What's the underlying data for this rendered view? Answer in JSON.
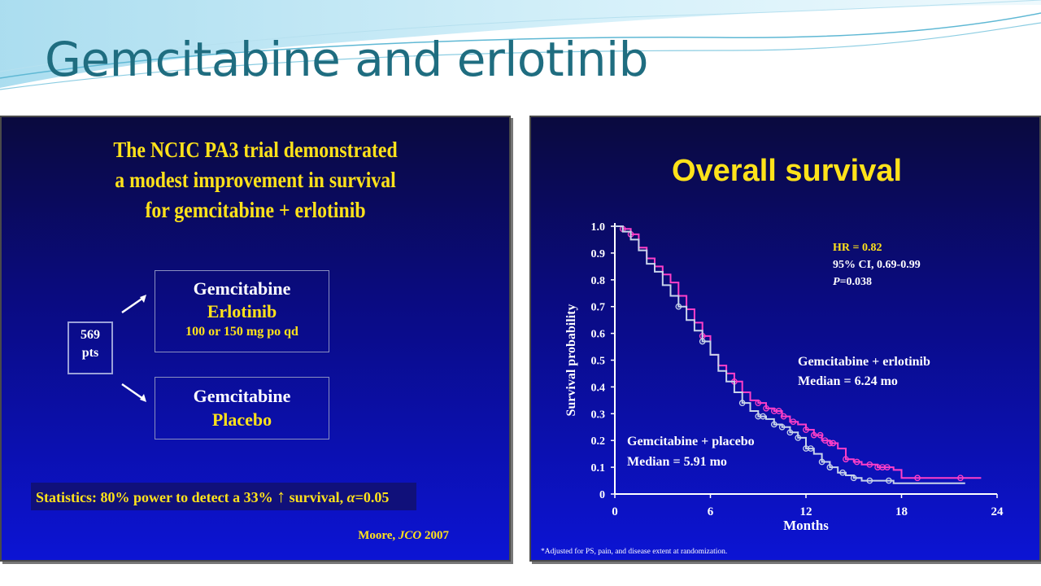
{
  "slide": {
    "title": "Gemcitabine and erlotinib"
  },
  "left_panel": {
    "title_lines": [
      "The NCIC PA3 trial demonstrated",
      "a modest improvement in survival",
      "for gemcitabine + erlotinib"
    ],
    "patients": {
      "count": "569",
      "unit": "pts"
    },
    "arm_1": {
      "drug": "Gemcitabine",
      "addition": "Erlotinib",
      "dose": "100 or 150 mg po qd"
    },
    "arm_2": {
      "drug": "Gemcitabine",
      "addition": "Placebo"
    },
    "statistics": {
      "prefix": "Statistics: 80% power to detect a 33% ",
      "arrow": "↑",
      "middle": " survival, ",
      "alpha": "α",
      "suffix": "=0.05"
    },
    "citation": {
      "author": "Moore, ",
      "journal": "JCO",
      "year": " 2007"
    }
  },
  "right_panel": {
    "title": "Overall survival",
    "footnote": "*Adjusted for PS, pain, and disease extent at randomization."
  },
  "colors": {
    "slide_title": "#1f6d80",
    "panel_top": "#0a0a3e",
    "panel_bottom": "#0c14d4",
    "highlight_yellow": "#ffe21a",
    "erlotinib_curve": "#ff3fc8",
    "placebo_curve": "#c8d4ea"
  },
  "chart_data": {
    "type": "line",
    "title": "Overall survival",
    "xlabel": "Months",
    "ylabel": "Survival probability",
    "xlim": [
      0,
      24
    ],
    "ylim": [
      0,
      1.0
    ],
    "x_ticks": [
      "0",
      "6",
      "12",
      "18",
      "24"
    ],
    "y_ticks": [
      "0",
      "0.1",
      "0.2",
      "0.3",
      "0.4",
      "0.5",
      "0.6",
      "0.7",
      "0.8",
      "0.9",
      "1.0"
    ],
    "grid": false,
    "annotations": {
      "hr": "HR = 0.82",
      "ci": "95% CI, 0.69-0.99",
      "p_symbol": "P",
      "p_value": "=0.038"
    },
    "series": [
      {
        "label_line1": "Gemcitabine + erlotinib",
        "label_line2": "Median = 6.24 mo",
        "color": "#ff3fc8",
        "x": [
          0,
          0.5,
          1,
          1.5,
          2,
          2.5,
          3,
          3.5,
          4,
          4.5,
          5,
          5.5,
          6,
          6.5,
          7,
          7.5,
          8,
          8.5,
          9,
          9.5,
          10,
          10.5,
          11,
          11.5,
          12,
          12.5,
          13,
          13.5,
          14,
          14.5,
          15,
          15.5,
          16,
          16.5,
          17,
          17.5,
          18,
          18.5,
          19,
          20,
          21,
          22,
          22.5,
          23
        ],
        "y": [
          1.0,
          0.99,
          0.97,
          0.92,
          0.88,
          0.85,
          0.82,
          0.79,
          0.74,
          0.69,
          0.64,
          0.59,
          0.52,
          0.48,
          0.45,
          0.42,
          0.38,
          0.35,
          0.34,
          0.32,
          0.31,
          0.29,
          0.27,
          0.26,
          0.24,
          0.22,
          0.2,
          0.19,
          0.17,
          0.13,
          0.12,
          0.11,
          0.11,
          0.1,
          0.1,
          0.09,
          0.06,
          0.06,
          0.06,
          0.06,
          0.06,
          0.06,
          0.06,
          0.06
        ],
        "censor_x": [
          0.5,
          1,
          5.5,
          7.5,
          9,
          9.5,
          10,
          10.3,
          10.6,
          11.2,
          12,
          12.5,
          12.9,
          13.2,
          13.5,
          13.7,
          14.5,
          15.2,
          16,
          16.5,
          16.8,
          17.1,
          19,
          21.7
        ]
      },
      {
        "label_line1": "Gemcitabine + placebo",
        "label_line2": "Median = 5.91 mo",
        "color": "#c8d4ea",
        "x": [
          0,
          0.5,
          1,
          1.5,
          2,
          2.5,
          3,
          3.5,
          4,
          4.5,
          5,
          5.5,
          6,
          6.5,
          7,
          7.5,
          8,
          8.5,
          9,
          9.5,
          10,
          10.5,
          11,
          11.5,
          12,
          12.5,
          13,
          13.5,
          14,
          14.5,
          15,
          15.5,
          16,
          16.5,
          17,
          17.5,
          18,
          19,
          20,
          21,
          22
        ],
        "y": [
          1.0,
          0.98,
          0.95,
          0.91,
          0.86,
          0.83,
          0.78,
          0.74,
          0.7,
          0.65,
          0.61,
          0.57,
          0.52,
          0.46,
          0.42,
          0.38,
          0.34,
          0.31,
          0.29,
          0.28,
          0.26,
          0.25,
          0.23,
          0.21,
          0.17,
          0.15,
          0.12,
          0.1,
          0.08,
          0.07,
          0.06,
          0.05,
          0.05,
          0.05,
          0.05,
          0.04,
          0.04,
          0.04,
          0.04,
          0.04,
          0.04
        ],
        "censor_x": [
          4,
          5.5,
          8,
          9,
          9.3,
          10,
          10.5,
          11,
          11.5,
          12,
          12.3,
          13,
          13.5,
          14.3,
          15,
          16,
          17.2
        ]
      }
    ]
  }
}
